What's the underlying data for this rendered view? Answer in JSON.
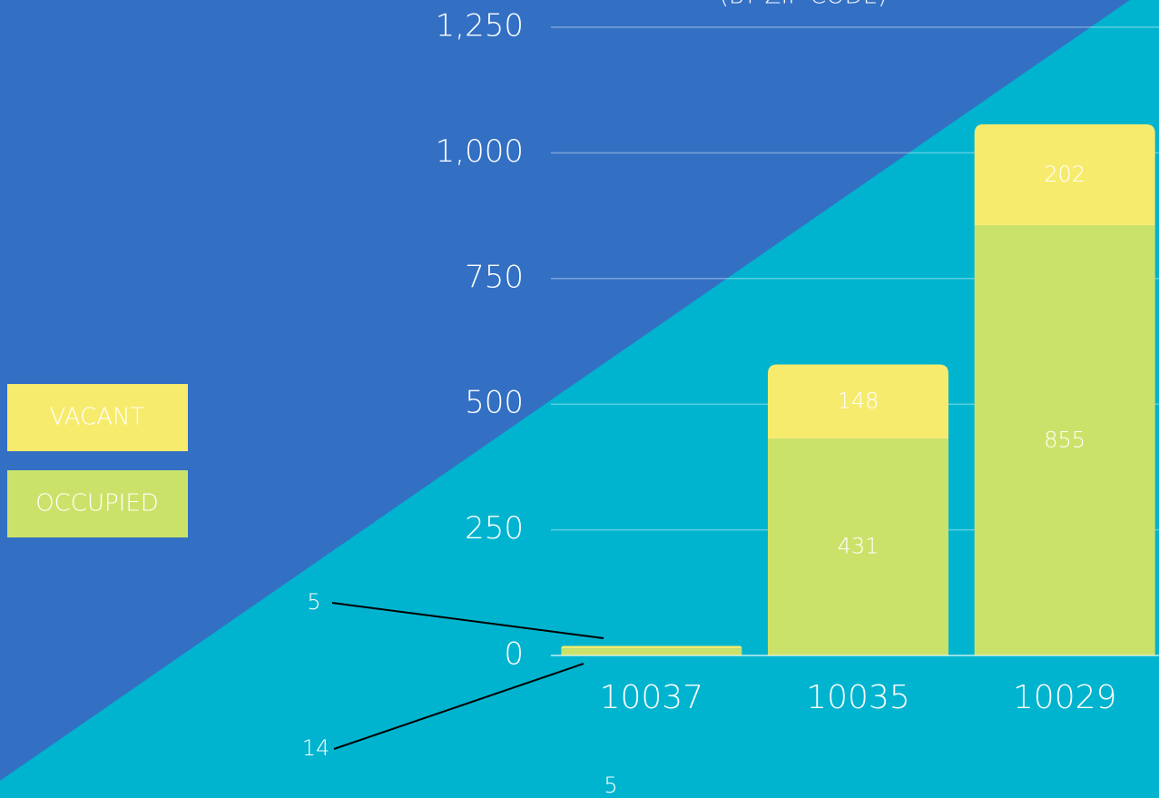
{
  "chart_data": {
    "type": "stacked_bar",
    "subtitle": "(BY ZIP CODE)",
    "categories": [
      "10037",
      "10035",
      "10029"
    ],
    "series": [
      {
        "name": "OCCUPIED",
        "color": "#cbe26a",
        "values": [
          14,
          431,
          855
        ]
      },
      {
        "name": "VACANT",
        "color": "#f7eb6e",
        "values": [
          5,
          148,
          202
        ]
      }
    ],
    "ylim": [
      0,
      1250
    ],
    "yticks": [
      0,
      250,
      500,
      750,
      {
        "value": 1000,
        "label": "1,000"
      },
      {
        "value": 1250,
        "label": "1,250"
      }
    ],
    "grid": true,
    "legend": "left",
    "annotations": [
      "5"
    ]
  }
}
